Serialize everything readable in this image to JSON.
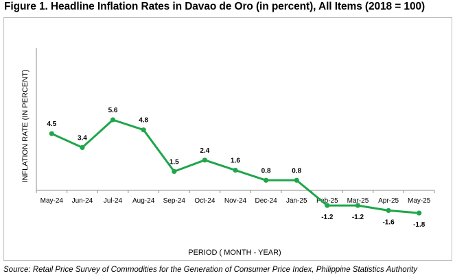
{
  "title": "Figure 1. Headline Inflation Rates in Davao de Oro (in percent), All Items (2018 = 100)",
  "source": "Source: Retail Price Survey of Commodities for the Generation of Consumer Price Index, Philippine Statistics Authority",
  "chart_data": {
    "type": "line",
    "title": "Figure 1. Headline Inflation Rates in Davao de Oro (in percent), All Items (2018 = 100)",
    "xlabel": "PERIOD ( MONTH - YEAR)",
    "ylabel": "INFLATION RATE (IN PERCENT)",
    "categories": [
      "May-24",
      "Jun-24",
      "Jul-24",
      "Aug-24",
      "Sep-24",
      "Oct-24",
      "Nov-24",
      "Dec-24",
      "Jan-25",
      "Feb-25",
      "Mar-25",
      "Apr-25",
      "May-25"
    ],
    "values": [
      4.5,
      3.4,
      5.6,
      4.8,
      1.5,
      2.4,
      1.6,
      0.8,
      0.8,
      -1.2,
      -1.2,
      -1.6,
      -1.8
    ],
    "data_labels": [
      "4.5",
      "3.4",
      "5.6",
      "4.8",
      "1.5",
      "2.4",
      "1.6",
      "0.8",
      "0.8",
      "-1.2",
      "-1.2",
      "-1.6",
      "-1.8"
    ],
    "line_color": "#1fa64a",
    "grid": false,
    "legend": "none"
  }
}
